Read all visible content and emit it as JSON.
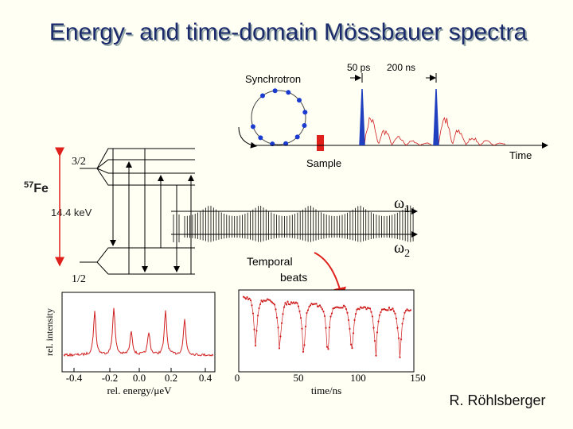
{
  "title": "Energy- and time-domain Mössbauer spectra",
  "synchrotron": {
    "label": "Synchrotron",
    "sample": "Sample",
    "time_axis": "Time",
    "pulse_width": "50 ps",
    "pulse_spacing": "200 ns"
  },
  "level_scheme": {
    "isotope_mass": "57",
    "isotope": "Fe",
    "excited_spin": "3/2",
    "ground_spin": "1/2",
    "transition_energy": "14.4 keV",
    "omega_1": {
      "symbol": "ω",
      "index": "1"
    },
    "omega_2": {
      "symbol": "ω",
      "index": "2"
    }
  },
  "annotation": {
    "line_1": "Temporal",
    "line_2": "beats"
  },
  "energy_spectrum": {
    "y_label": "rel. intensity",
    "x_label": "rel. energy/μeV",
    "x_ticks": [
      "-0.4",
      "-0.2",
      "0.0",
      "0.2",
      "0.4"
    ]
  },
  "time_spectrum": {
    "x_label": "time/ns",
    "x_ticks": [
      "0",
      "50",
      "100",
      "150"
    ]
  },
  "author": "R. Röhlsberger"
}
